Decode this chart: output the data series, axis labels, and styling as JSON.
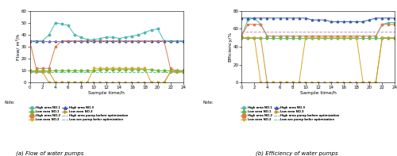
{
  "time": [
    0,
    1,
    2,
    3,
    4,
    5,
    6,
    7,
    8,
    9,
    10,
    11,
    12,
    13,
    14,
    15,
    16,
    17,
    18,
    19,
    20,
    21,
    22,
    23,
    24
  ],
  "flow_high1": [
    35,
    35,
    35,
    40,
    50,
    49,
    48,
    40,
    38,
    36,
    36,
    37,
    38,
    38,
    37,
    38,
    39,
    40,
    42,
    44,
    45,
    35,
    35,
    35,
    35
  ],
  "flow_high2": [
    35,
    12,
    12,
    12,
    30,
    35,
    35,
    35,
    35,
    35,
    35,
    35,
    35,
    35,
    35,
    35,
    35,
    35,
    35,
    35,
    35,
    35,
    12,
    10,
    10
  ],
  "flow_high3": [
    35,
    35,
    35,
    35,
    35,
    35,
    35,
    35,
    35,
    35,
    35,
    35,
    35,
    35,
    35,
    35,
    35,
    35,
    35,
    35,
    35,
    35,
    35,
    35,
    35
  ],
  "flow_high_before": [
    35,
    35,
    35,
    35,
    35,
    35,
    35,
    35,
    35,
    35,
    35,
    35,
    35,
    35,
    35,
    35,
    35,
    35,
    35,
    35,
    35,
    35,
    35,
    35,
    35
  ],
  "flow_low1": [
    10,
    10,
    10,
    10,
    10,
    10,
    10,
    10,
    10,
    10,
    10,
    11,
    11,
    11,
    11,
    11,
    11,
    11,
    11,
    11,
    10,
    10,
    10,
    10,
    10
  ],
  "flow_low2": [
    9,
    9,
    9,
    0,
    0,
    0,
    0,
    0,
    0,
    0,
    12,
    12,
    12,
    12,
    12,
    12,
    12,
    12,
    12,
    0,
    0,
    0,
    9,
    9,
    9
  ],
  "flow_low3": [
    9,
    9,
    9,
    9,
    0,
    0,
    0,
    0,
    0,
    0,
    0,
    0,
    0,
    0,
    0,
    0,
    0,
    0,
    0,
    0,
    0,
    0,
    9,
    9,
    9
  ],
  "flow_low_before": [
    9,
    9,
    9,
    9,
    9,
    9,
    9,
    9,
    9,
    9,
    9,
    9,
    9,
    9,
    9,
    9,
    9,
    9,
    9,
    9,
    9,
    9,
    9,
    9,
    9
  ],
  "eff_high1": [
    52,
    70,
    72,
    65,
    52,
    52,
    52,
    52,
    52,
    52,
    52,
    52,
    52,
    52,
    52,
    52,
    52,
    52,
    52,
    52,
    52,
    52,
    65,
    67,
    67
  ],
  "eff_high2": [
    52,
    65,
    65,
    65,
    52,
    52,
    52,
    52,
    52,
    52,
    52,
    52,
    52,
    52,
    52,
    52,
    52,
    52,
    52,
    52,
    52,
    52,
    65,
    65,
    65
  ],
  "eff_high3": [
    72,
    72,
    72,
    72,
    72,
    72,
    72,
    72,
    72,
    72,
    72,
    70,
    70,
    70,
    68,
    68,
    68,
    68,
    68,
    68,
    70,
    72,
    72,
    72,
    72
  ],
  "eff_high_before": [
    57,
    57,
    57,
    57,
    57,
    57,
    57,
    57,
    57,
    57,
    57,
    57,
    57,
    57,
    57,
    57,
    57,
    57,
    57,
    57,
    57,
    57,
    57,
    57,
    57
  ],
  "eff_low1": [
    50,
    50,
    50,
    50,
    50,
    50,
    50,
    50,
    50,
    50,
    50,
    50,
    50,
    50,
    50,
    50,
    50,
    50,
    50,
    50,
    50,
    50,
    50,
    50,
    50
  ],
  "eff_low2": [
    50,
    50,
    50,
    0,
    0,
    0,
    0,
    0,
    0,
    0,
    50,
    50,
    50,
    50,
    50,
    50,
    50,
    50,
    50,
    0,
    0,
    0,
    50,
    50,
    50
  ],
  "eff_low3": [
    50,
    50,
    50,
    50,
    0,
    0,
    0,
    0,
    0,
    0,
    0,
    0,
    0,
    0,
    0,
    0,
    0,
    0,
    0,
    0,
    0,
    0,
    50,
    50,
    50
  ],
  "eff_low_before": [
    50,
    50,
    50,
    50,
    50,
    50,
    50,
    50,
    50,
    50,
    50,
    50,
    50,
    50,
    50,
    50,
    50,
    50,
    50,
    50,
    50,
    50,
    50,
    50,
    50
  ],
  "color_high1": "#4ab8b0",
  "color_high2": "#e07848",
  "color_high3": "#3858a8",
  "color_high_before": "#c090c0",
  "color_low1": "#68b838",
  "color_low2": "#d8a820",
  "color_low3": "#c89820",
  "color_low_before": "#68c0a0",
  "flow_ylim": [
    0,
    60
  ],
  "flow_yticks": [
    0,
    10,
    20,
    30,
    40,
    50,
    60
  ],
  "eff_ylim": [
    0,
    80
  ],
  "eff_yticks": [
    0,
    20,
    40,
    60,
    80
  ],
  "xlim": [
    0,
    24
  ],
  "xticks": [
    0,
    2,
    4,
    6,
    8,
    10,
    12,
    14,
    16,
    18,
    20,
    22,
    24
  ],
  "xlabel": "Sample time/h",
  "ylabel_flow": "Flow/ m³/h",
  "ylabel_eff": "Efficiency/%",
  "title_a": "(a) Flow of water pumps",
  "title_b": "(b) Efficiency of water pumps",
  "legend_note": "Note:",
  "leg_labels_col1": [
    "High area NO.1",
    "High area NO.2",
    "High area NO.3",
    "High area pump before optimization"
  ],
  "leg_labels_col2": [
    "Low area NO.1",
    "Low area NO.2",
    "Low area NO.3",
    "Low are pump befor optimization"
  ]
}
